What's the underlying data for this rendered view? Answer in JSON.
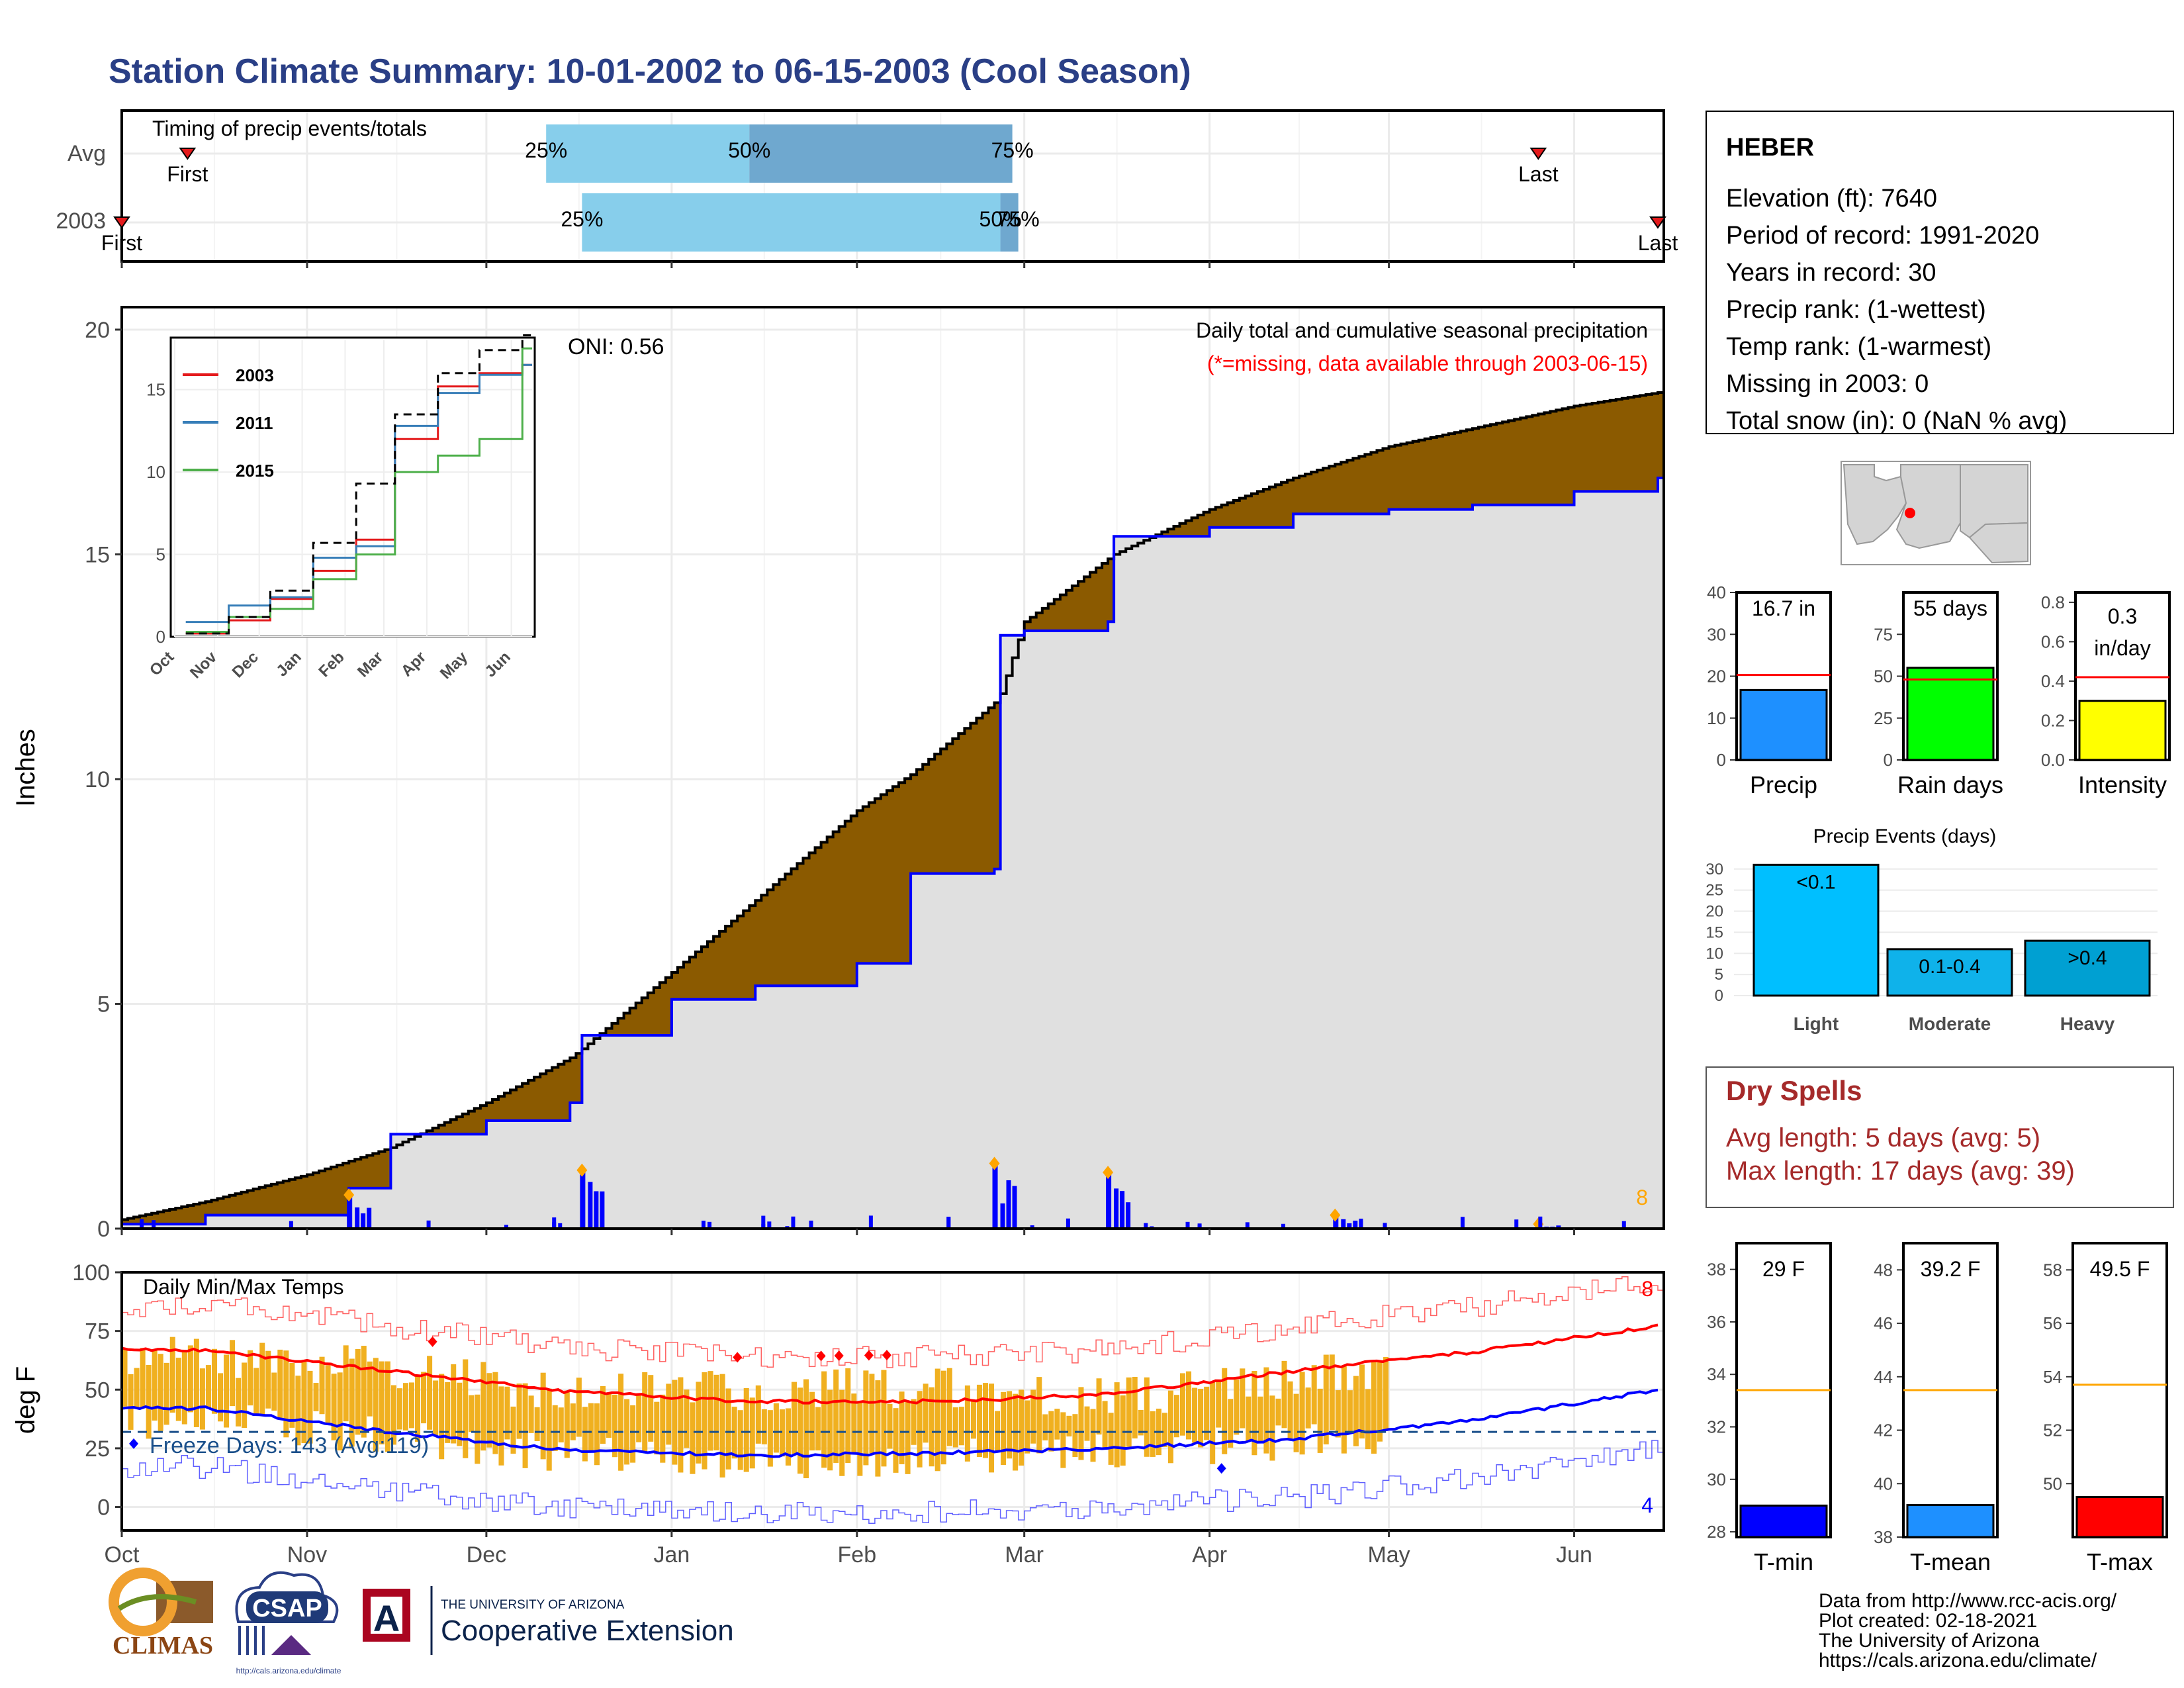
{
  "title": "Station Climate Summary: 10-01-2002 to 06-15-2003 (Cool Season)",
  "months": [
    "Oct",
    "Nov",
    "Dec",
    "Jan",
    "Feb",
    "Mar",
    "Apr",
    "May",
    "Jun"
  ],
  "timing": {
    "label": "Timing of precip events/totals",
    "rows": [
      "Avg",
      "2003"
    ],
    "avg": {
      "first": "First",
      "last": "Last",
      "p25": "25%",
      "p50": "50%",
      "p75": "75%",
      "first_date": "2002-10-12",
      "last_date": "2003-05-26",
      "p25_date": "2002-12-11",
      "p50_date": "2003-01-14",
      "p75_date": "2003-02-27"
    },
    "yr": {
      "first": "First",
      "last": "Last",
      "p25": "25%",
      "p50": "50%",
      "p75": "75%",
      "first_date": "2002-10-01",
      "last_date": "2003-06-15",
      "p25_date": "2002-12-17",
      "p50_date": "2003-02-25",
      "p75_date": "2003-02-28"
    },
    "colors": {
      "light": "#87ceeb",
      "dark": "#6fa8cf",
      "marker": "#e41a1c"
    }
  },
  "precip": {
    "ylabel": "Inches",
    "yticks": [
      "0",
      "5",
      "10",
      "15",
      "20"
    ],
    "ylim": [
      0,
      20.5
    ],
    "caption": "Daily total and cumulative seasonal precipitation",
    "missing_note": "(*=missing, data available through 2003-06-15)",
    "oni": "ONI: 0.56",
    "count_label": "8",
    "colors": {
      "normal_cum": "#000000",
      "year_cum": "#0000ff",
      "deficit_fill": "#8b5a00",
      "below_fill": "#e0e0e0",
      "daily": "#0000ff",
      "marker": "#ffa500"
    }
  },
  "inset": {
    "yticks": [
      "0",
      "5",
      "10",
      "15"
    ],
    "months": [
      "Oct",
      "Nov",
      "Dec",
      "Jan",
      "Feb",
      "Mar",
      "Apr",
      "May",
      "Jun"
    ],
    "legend": [
      {
        "name": "2003",
        "color": "#e41a1c"
      },
      {
        "name": "2011",
        "color": "#377eb8"
      },
      {
        "name": "2015",
        "color": "#4daf4a"
      }
    ]
  },
  "temps": {
    "ylabel": "deg F",
    "label": "Daily Min/Max Temps",
    "yticks": [
      "0",
      "25",
      "50",
      "75",
      "100"
    ],
    "ylim": [
      -10,
      100
    ],
    "freeze": "Freeze Days: 143 (Avg:119)",
    "freeze_threshold": 32,
    "max_count": "8",
    "min_count": "4",
    "colors": {
      "bars": "#f0b020",
      "normal_max": "#ff0000",
      "normal_min": "#0000ff",
      "record_max": "#ff6060",
      "record_min": "#6060ff",
      "freeze": "#1a4f8a"
    }
  },
  "station": {
    "name": "HEBER",
    "lines": [
      "Elevation (ft): 7640",
      "Period of record: 1991-2020",
      "Years in record: 30",
      "Precip rank:  (1-wettest)",
      "Temp rank:  (1-warmest)",
      "Missing in 2003: 0",
      "Total snow (in): 0 (NaN % avg)"
    ]
  },
  "gauges": [
    {
      "label": "Precip",
      "value_label": "16.7 in",
      "value": 16.7,
      "avg": 20.3,
      "ylim": [
        0,
        40
      ],
      "yticks": [
        "0",
        "10",
        "20",
        "30",
        "40"
      ],
      "color": "#1e90ff"
    },
    {
      "label": "Rain days",
      "value_label": "55 days",
      "value": 55,
      "avg": 48,
      "ylim": [
        0,
        100
      ],
      "yticks": [
        "0",
        "25",
        "50",
        "75"
      ],
      "color": "#00ff00"
    },
    {
      "label": "Intensity",
      "value_label": "0.3 in/day",
      "value": 0.3,
      "avg": 0.42,
      "ylim": [
        0,
        0.85
      ],
      "yticks": [
        "0.0",
        "0.2",
        "0.4",
        "0.6",
        "0.8"
      ],
      "color": "#ffff00"
    }
  ],
  "events": {
    "title": "Precip Events (days)",
    "yticks": [
      "0",
      "5",
      "10",
      "15",
      "20",
      "25",
      "30"
    ],
    "bars": [
      {
        "name": "Light",
        "label": "<0.1",
        "value": 31,
        "color": "#00bfff"
      },
      {
        "name": "Moderate",
        "label": "0.1-0.4",
        "value": 11,
        "color": "#0fb2ea"
      },
      {
        "name": "Heavy",
        "label": ">0.4",
        "value": 13,
        "color": "#00a0d2"
      }
    ]
  },
  "dry": {
    "title": "Dry Spells",
    "lines": [
      "Avg length: 5 days (avg: 5)",
      "Max length: 17 days (avg: 39)"
    ]
  },
  "temp_gauges": [
    {
      "label": "T-min",
      "value_label": "29 F",
      "value": 29,
      "avg": 33.4,
      "ylim": [
        27.8,
        39
      ],
      "yticks": [
        "28",
        "30",
        "32",
        "34",
        "36",
        "38"
      ],
      "color": "#0000ff"
    },
    {
      "label": "T-mean",
      "value_label": "39.2 F",
      "value": 39.2,
      "avg": 43.5,
      "ylim": [
        38,
        49
      ],
      "yticks": [
        "38",
        "40",
        "42",
        "44",
        "46",
        "48"
      ],
      "color": "#1e90ff"
    },
    {
      "label": "T-max",
      "value_label": "49.5 F",
      "value": 49.5,
      "avg": 53.7,
      "ylim": [
        48,
        59
      ],
      "yticks": [
        "50",
        "52",
        "54",
        "56",
        "58"
      ],
      "color": "#ff0000"
    }
  ],
  "footer": {
    "lines": [
      "Data from http://www.rcc-acis.org/",
      "Plot created: 02-18-2021",
      "The University of Arizona",
      "https://cals.arizona.edu/climate/"
    ]
  },
  "logos": {
    "climas": "CLIMAS",
    "csap": "CSAP",
    "csap_url": "http://cals.arizona.edu/climate",
    "ua_small": "THE UNIVERSITY OF ARIZONA",
    "ua_big": "Cooperative Extension",
    "ua_letter": "A"
  },
  "chart_data": [
    {
      "type": "area",
      "title": "Daily total and cumulative seasonal precipitation",
      "ylabel": "Inches",
      "ylim": [
        0,
        20.5
      ],
      "x": [
        "2002-10-01",
        "2002-10-15",
        "2002-11-01",
        "2002-11-08",
        "2002-11-15",
        "2002-12-01",
        "2002-12-15",
        "2002-12-17",
        "2003-01-01",
        "2003-01-15",
        "2003-02-01",
        "2003-02-10",
        "2003-02-24",
        "2003-02-25",
        "2003-03-01",
        "2003-03-15",
        "2003-03-16",
        "2003-04-01",
        "2003-04-15",
        "2003-05-01",
        "2003-05-15",
        "2003-06-01",
        "2003-06-15"
      ],
      "series": [
        {
          "name": "normal_cumulative",
          "values": [
            0.2,
            0.6,
            1.2,
            1.5,
            1.8,
            2.8,
            3.8,
            4.0,
            5.7,
            7.3,
            9.3,
            10.1,
            11.7,
            11.9,
            13.5,
            14.9,
            15.0,
            16.0,
            16.7,
            17.4,
            17.8,
            18.3,
            18.6
          ]
        },
        {
          "name": "2003_cumulative",
          "values": [
            0.1,
            0.3,
            0.3,
            0.9,
            2.1,
            2.4,
            2.8,
            4.3,
            5.1,
            5.4,
            5.9,
            7.9,
            8.0,
            13.2,
            13.3,
            13.5,
            15.4,
            15.6,
            15.9,
            16.0,
            16.1,
            16.4,
            16.7
          ]
        }
      ],
      "daily_peaks": [
        {
          "date": "2002-11-08",
          "value": 0.75
        },
        {
          "date": "2002-12-17",
          "value": 1.3
        },
        {
          "date": "2003-02-24",
          "value": 1.45
        },
        {
          "date": "2003-03-15",
          "value": 1.25
        },
        {
          "date": "2003-04-22",
          "value": 0.3
        },
        {
          "date": "2003-05-26",
          "value": 0.1
        }
      ],
      "annotations": [
        "ONI: 0.56",
        "8"
      ]
    },
    {
      "type": "line",
      "title": "",
      "x": [
        "Oct",
        "Nov",
        "Dec",
        "Jan",
        "Feb",
        "Mar",
        "Apr",
        "May",
        "Jun"
      ],
      "series": [
        {
          "name": "2003",
          "values": [
            0.2,
            1.0,
            2.3,
            4.0,
            5.9,
            12.0,
            15.2,
            16.0,
            16.5
          ]
        },
        {
          "name": "2011",
          "values": [
            0.9,
            1.9,
            2.4,
            4.8,
            5.5,
            12.8,
            14.8,
            15.9,
            16.5
          ]
        },
        {
          "name": "2015",
          "values": [
            0.3,
            1.2,
            1.7,
            3.5,
            5.0,
            10.0,
            11.0,
            12.0,
            17.5
          ]
        },
        {
          "name": "normal",
          "values": [
            0.2,
            1.2,
            2.8,
            5.7,
            9.3,
            13.5,
            16.0,
            17.4,
            18.3
          ]
        }
      ],
      "ylim": [
        0,
        18
      ]
    },
    {
      "type": "bar",
      "title": "Daily Min/Max Temps",
      "ylabel": "deg F",
      "ylim": [
        -10,
        100
      ],
      "x": [
        "Oct",
        "Nov",
        "Dec",
        "Jan",
        "Feb",
        "Mar",
        "Apr",
        "May",
        "Jun"
      ],
      "series": [
        {
          "name": "normal_max",
          "values": [
            67,
            58,
            49,
            45,
            45,
            48,
            58,
            66,
            77
          ]
        },
        {
          "name": "normal_min",
          "values": [
            42,
            32,
            24,
            22,
            23,
            25,
            29,
            37,
            50
          ]
        },
        {
          "name": "daily_max_2003",
          "values": [
            64,
            59,
            48,
            50,
            51,
            46,
            55,
            62,
            null
          ]
        },
        {
          "name": "daily_min_2003",
          "values": [
            37,
            30,
            22,
            20,
            21,
            24,
            28,
            32,
            null
          ]
        }
      ],
      "annotations": [
        "Freeze Days: 143 (Avg:119)",
        "8",
        "4"
      ]
    }
  ]
}
